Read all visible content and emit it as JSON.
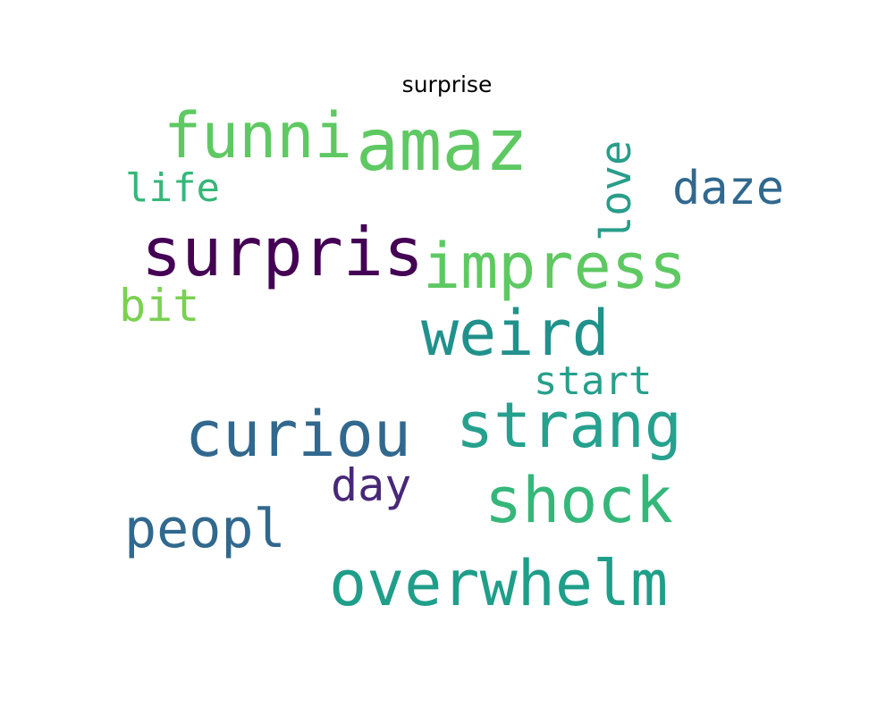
{
  "chart_data": {
    "type": "wordcloud",
    "title": "surprise",
    "words": [
      {
        "text": "amaz",
        "color": "#5ec962"
      },
      {
        "text": "funni",
        "color": "#5ec962"
      },
      {
        "text": "surpris",
        "color": "#440154"
      },
      {
        "text": "impress",
        "color": "#5ec962"
      },
      {
        "text": "weird",
        "color": "#21918c"
      },
      {
        "text": "curiou",
        "color": "#31688e"
      },
      {
        "text": "strang",
        "color": "#25a18e"
      },
      {
        "text": "shock",
        "color": "#35b779"
      },
      {
        "text": "overwhelm",
        "color": "#1f9e89"
      },
      {
        "text": "daze",
        "color": "#31688e"
      },
      {
        "text": "love",
        "color": "#2a9d8a"
      },
      {
        "text": "life",
        "color": "#35b779"
      },
      {
        "text": "bit",
        "color": "#7ad151"
      },
      {
        "text": "start",
        "color": "#26a08b"
      },
      {
        "text": "peopl",
        "color": "#31688e"
      },
      {
        "text": "day",
        "color": "#482878"
      }
    ]
  }
}
